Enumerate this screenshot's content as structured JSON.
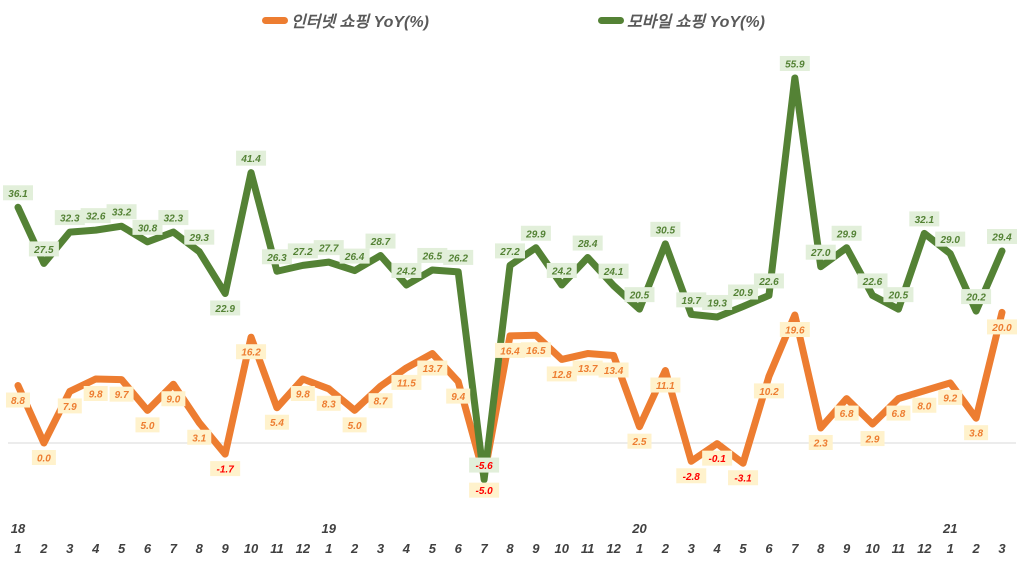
{
  "chart_data": {
    "type": "line",
    "title": "",
    "xlabel": "",
    "ylabel": "",
    "years": [
      {
        "label": "18",
        "index": 0
      },
      {
        "label": "19",
        "index": 12
      },
      {
        "label": "20",
        "index": 24
      },
      {
        "label": "21",
        "index": 36
      }
    ],
    "categories": [
      "1",
      "2",
      "3",
      "4",
      "5",
      "6",
      "7",
      "8",
      "9",
      "10",
      "11",
      "12",
      "1",
      "2",
      "3",
      "4",
      "5",
      "6",
      "7",
      "8",
      "9",
      "10",
      "11",
      "12",
      "1",
      "2",
      "3",
      "4",
      "5",
      "6",
      "7",
      "8",
      "9",
      "10",
      "11",
      "12",
      "1",
      "2",
      "3"
    ],
    "ylim": [
      -10,
      60
    ],
    "grid": false,
    "legend_position": "top",
    "series": [
      {
        "name": "인터넷 쇼핑 YoY(%)",
        "color": "#ED7D31",
        "label_bg": "#FFF2CC",
        "label_color": "#ED7D31",
        "values": [
          8.8,
          0.0,
          7.9,
          9.8,
          9.7,
          5.0,
          9.0,
          3.1,
          -1.7,
          16.2,
          5.4,
          9.8,
          8.3,
          5.0,
          8.7,
          11.5,
          13.7,
          9.4,
          -5.0,
          16.4,
          16.5,
          12.8,
          13.7,
          13.4,
          2.5,
          11.1,
          -2.8,
          -0.1,
          -3.1,
          10.2,
          19.6,
          2.3,
          6.8,
          2.9,
          6.8,
          8.0,
          9.2,
          3.8,
          20.0
        ]
      },
      {
        "name": "모바일 쇼핑 YoY(%)",
        "color": "#548235",
        "label_bg": "#E2EFDA",
        "label_color": "#548235",
        "values": [
          36.1,
          27.5,
          32.3,
          32.6,
          33.2,
          30.8,
          32.3,
          29.3,
          22.9,
          41.4,
          26.3,
          27.2,
          27.7,
          26.4,
          28.7,
          24.2,
          26.5,
          26.2,
          -5.6,
          27.2,
          29.9,
          24.2,
          28.4,
          24.1,
          20.5,
          30.5,
          19.7,
          19.3,
          20.9,
          22.6,
          55.9,
          27.0,
          29.9,
          22.6,
          20.5,
          32.1,
          29.0,
          20.2,
          29.4
        ]
      }
    ],
    "negative_label_color": "#FF0000",
    "zero_line_color": "#D9D9D9"
  }
}
